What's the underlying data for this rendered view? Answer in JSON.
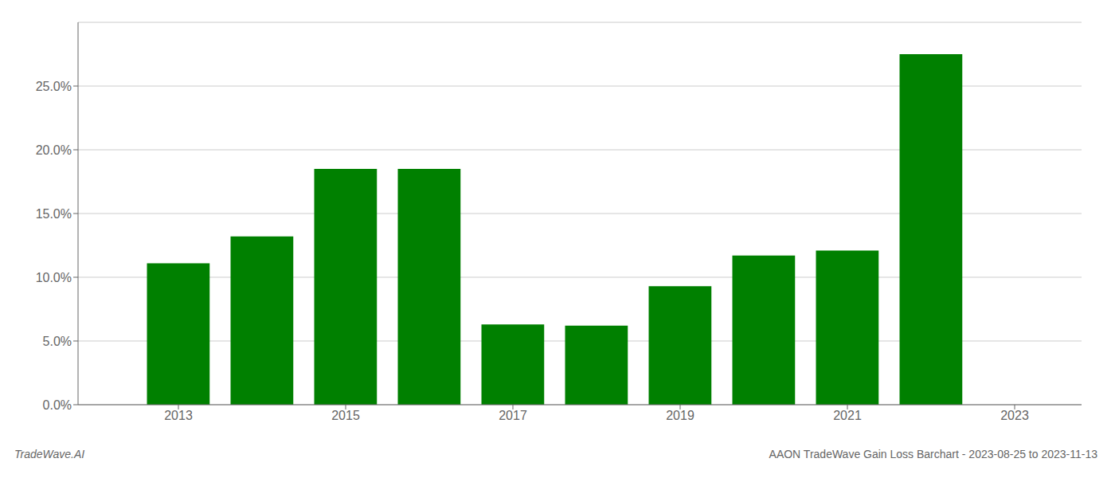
{
  "chart_data": {
    "type": "bar",
    "title": "AAON TradeWave Gain Loss Barchart - 2023-08-25 to 2023-11-13",
    "annotations": [
      "TradeWave.AI"
    ],
    "x": [
      2013,
      2014,
      2015,
      2016,
      2017,
      2018,
      2019,
      2020,
      2021,
      2022
    ],
    "values": [
      0.111,
      0.132,
      0.185,
      0.185,
      0.063,
      0.062,
      0.093,
      0.117,
      0.121,
      0.275
    ],
    "color": "#008000",
    "xlim": [
      2011.8,
      2023.8
    ],
    "xticks": [
      2013,
      2015,
      2017,
      2019,
      2021,
      2023
    ],
    "ylim": [
      0,
      0.3
    ],
    "yticks": [
      {
        "value": 0,
        "label": "0.0%"
      },
      {
        "value": 0.05,
        "label": "5.0%"
      },
      {
        "value": 0.1,
        "label": "10.0%"
      },
      {
        "value": 0.15,
        "label": "15.0%"
      },
      {
        "value": 0.2,
        "label": "20.0%"
      },
      {
        "value": 0.25,
        "label": "25.0%"
      }
    ],
    "grid": "y"
  }
}
